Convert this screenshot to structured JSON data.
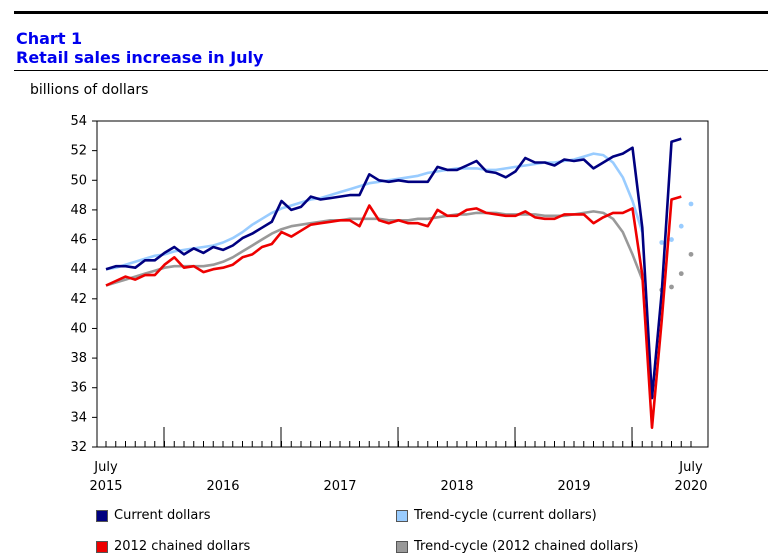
{
  "header": {
    "line1": "Chart 1",
    "line2": "Retail sales increase in July"
  },
  "chart_data": {
    "type": "line",
    "ylabel": "billions of dollars",
    "ylim": [
      32,
      54
    ],
    "y_ticks": [
      32,
      34,
      36,
      38,
      40,
      42,
      44,
      46,
      48,
      50,
      52,
      54
    ],
    "x_start": "2015-07",
    "x_labels": [
      {
        "month_index": 0,
        "top": "July",
        "bottom": "2015"
      },
      {
        "month_index": 12,
        "top": "",
        "bottom": "2016"
      },
      {
        "month_index": 24,
        "top": "",
        "bottom": "2017"
      },
      {
        "month_index": 36,
        "top": "",
        "bottom": "2018"
      },
      {
        "month_index": 48,
        "top": "",
        "bottom": "2019"
      },
      {
        "month_index": 60,
        "top": "July",
        "bottom": "2020"
      }
    ],
    "grid": false,
    "legend_placement": "bottom",
    "series": [
      {
        "name": "Current dollars",
        "color": "#000080",
        "style": "solid",
        "values": [
          44.0,
          44.2,
          44.2,
          44.1,
          44.6,
          44.6,
          45.1,
          45.5,
          45.0,
          45.4,
          45.1,
          45.5,
          45.3,
          45.6,
          46.1,
          46.4,
          46.8,
          47.2,
          48.6,
          48.0,
          48.2,
          48.9,
          48.7,
          48.8,
          48.9,
          49.0,
          49.0,
          50.4,
          50.0,
          49.9,
          50.0,
          49.9,
          49.9,
          49.9,
          50.9,
          50.7,
          50.7,
          51.0,
          51.3,
          50.6,
          50.5,
          50.2,
          50.6,
          51.5,
          51.2,
          51.2,
          51.0,
          51.4,
          51.3,
          51.4,
          50.8,
          51.2,
          51.6,
          51.8,
          52.2,
          46.8,
          35.3,
          42.5,
          52.6,
          52.8
        ]
      },
      {
        "name": "Trend-cycle (current dollars)",
        "color": "#99ccff",
        "style": "solid",
        "values": [
          44.0,
          44.1,
          44.3,
          44.5,
          44.7,
          44.9,
          45.0,
          45.2,
          45.3,
          45.4,
          45.5,
          45.6,
          45.8,
          46.1,
          46.5,
          47.0,
          47.4,
          47.8,
          48.1,
          48.3,
          48.5,
          48.7,
          48.8,
          49.0,
          49.2,
          49.4,
          49.6,
          49.8,
          49.9,
          50.0,
          50.1,
          50.2,
          50.3,
          50.5,
          50.6,
          50.7,
          50.8,
          50.8,
          50.8,
          50.7,
          50.7,
          50.8,
          50.9,
          51.0,
          51.1,
          51.2,
          51.2,
          51.3,
          51.4,
          51.6,
          51.8,
          51.7,
          51.2,
          50.2,
          48.6,
          46.5
        ],
        "dotted_values": [
          [
            57,
            45.8
          ],
          [
            58,
            46.0
          ],
          [
            59,
            46.9
          ],
          [
            60,
            48.4
          ]
        ]
      },
      {
        "name": "2012 chained dollars",
        "color": "#ee0000",
        "style": "solid",
        "values": [
          42.9,
          43.2,
          43.5,
          43.3,
          43.6,
          43.6,
          44.3,
          44.8,
          44.1,
          44.2,
          43.8,
          44.0,
          44.1,
          44.3,
          44.8,
          45.0,
          45.5,
          45.7,
          46.5,
          46.2,
          46.6,
          47.0,
          47.1,
          47.2,
          47.3,
          47.3,
          46.9,
          48.3,
          47.3,
          47.1,
          47.3,
          47.1,
          47.1,
          46.9,
          48.0,
          47.6,
          47.6,
          48.0,
          48.1,
          47.8,
          47.7,
          47.6,
          47.6,
          47.9,
          47.5,
          47.4,
          47.4,
          47.7,
          47.7,
          47.7,
          47.1,
          47.5,
          47.8,
          47.8,
          48.1,
          43.6,
          33.3,
          40.6,
          48.7,
          48.9
        ]
      },
      {
        "name": "Trend-cycle (2012 chained dollars)",
        "color": "#999999",
        "style": "solid",
        "values": [
          42.9,
          43.1,
          43.3,
          43.5,
          43.7,
          43.9,
          44.1,
          44.2,
          44.2,
          44.2,
          44.2,
          44.3,
          44.5,
          44.8,
          45.2,
          45.6,
          46.0,
          46.4,
          46.7,
          46.9,
          47.0,
          47.1,
          47.2,
          47.3,
          47.3,
          47.4,
          47.4,
          47.4,
          47.4,
          47.3,
          47.3,
          47.3,
          47.4,
          47.4,
          47.5,
          47.6,
          47.7,
          47.7,
          47.8,
          47.8,
          47.8,
          47.7,
          47.7,
          47.7,
          47.7,
          47.6,
          47.6,
          47.6,
          47.7,
          47.8,
          47.9,
          47.8,
          47.4,
          46.5,
          45.0,
          43.3
        ],
        "dotted_values": [
          [
            57,
            42.6
          ],
          [
            58,
            42.8
          ],
          [
            59,
            43.7
          ],
          [
            60,
            45.0
          ]
        ]
      }
    ]
  }
}
